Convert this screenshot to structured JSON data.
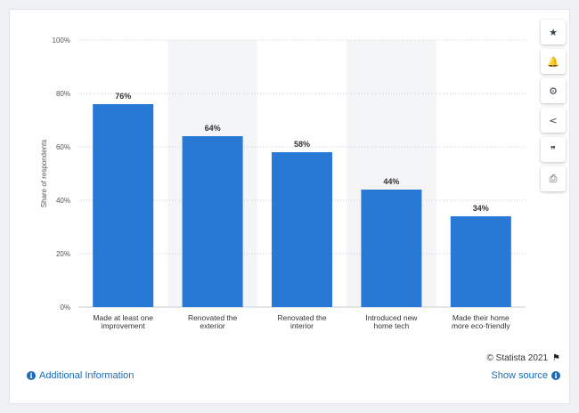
{
  "chart_data": {
    "type": "bar",
    "categories": [
      [
        "Made at least one",
        "improvement"
      ],
      [
        "Renovated the",
        "exterior"
      ],
      [
        "Renovated the",
        "interior"
      ],
      [
        "Introduced new",
        "home tech"
      ],
      [
        "Made their home",
        "more eco-friendly"
      ]
    ],
    "values": [
      76,
      64,
      58,
      44,
      34
    ],
    "value_labels": [
      "76%",
      "64%",
      "58%",
      "44%",
      "34%"
    ],
    "ylabel": "Share of respondents",
    "yticks": [
      "0%",
      "20%",
      "40%",
      "60%",
      "80%",
      "100%"
    ],
    "ylim": [
      0,
      100
    ],
    "bar_color": "#2878d6",
    "alt_band_color": "#f4f5f7",
    "grid": true
  },
  "toolbar": {
    "icons": [
      "star-icon",
      "bell-icon",
      "gear-icon",
      "share-icon",
      "quote-icon",
      "print-icon"
    ],
    "glyphs": [
      "★",
      "🔔",
      "⚙",
      "<",
      "❞",
      "⎙"
    ]
  },
  "footer": {
    "copyright": "© Statista 2021",
    "additional_info": "Additional Information",
    "show_source": "Show source"
  }
}
